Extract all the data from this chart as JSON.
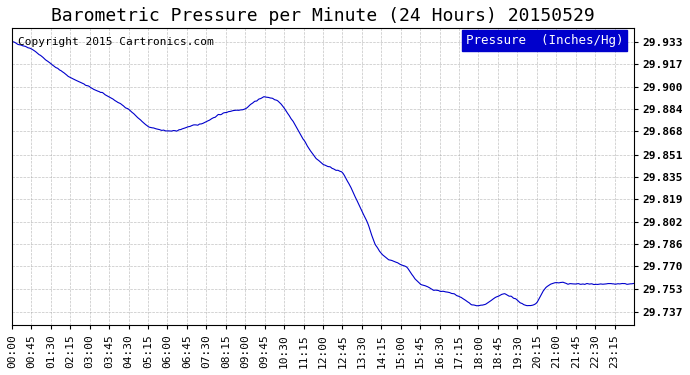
{
  "title": "Barometric Pressure per Minute (24 Hours) 20150529",
  "copyright": "Copyright 2015 Cartronics.com",
  "legend_label": "Pressure  (Inches/Hg)",
  "legend_bg": "#0000cc",
  "legend_fg": "#ffffff",
  "line_color": "#0000cc",
  "bg_color": "#ffffff",
  "grid_color": "#aaaaaa",
  "yticks": [
    29.737,
    29.753,
    29.77,
    29.786,
    29.802,
    29.819,
    29.835,
    29.851,
    29.868,
    29.884,
    29.9,
    29.917,
    29.933
  ],
  "ymin": 29.727,
  "ymax": 29.943,
  "xtick_labels": [
    "00:00",
    "00:45",
    "01:30",
    "02:15",
    "03:00",
    "03:45",
    "04:30",
    "05:15",
    "06:00",
    "06:45",
    "07:30",
    "08:15",
    "09:00",
    "09:45",
    "10:30",
    "11:15",
    "12:00",
    "12:45",
    "13:30",
    "14:15",
    "15:00",
    "15:45",
    "16:30",
    "17:15",
    "18:00",
    "18:45",
    "19:30",
    "20:15",
    "21:00",
    "21:45",
    "22:30",
    "23:15"
  ],
  "title_fontsize": 13,
  "copyright_fontsize": 8,
  "tick_fontsize": 8,
  "legend_fontsize": 9
}
